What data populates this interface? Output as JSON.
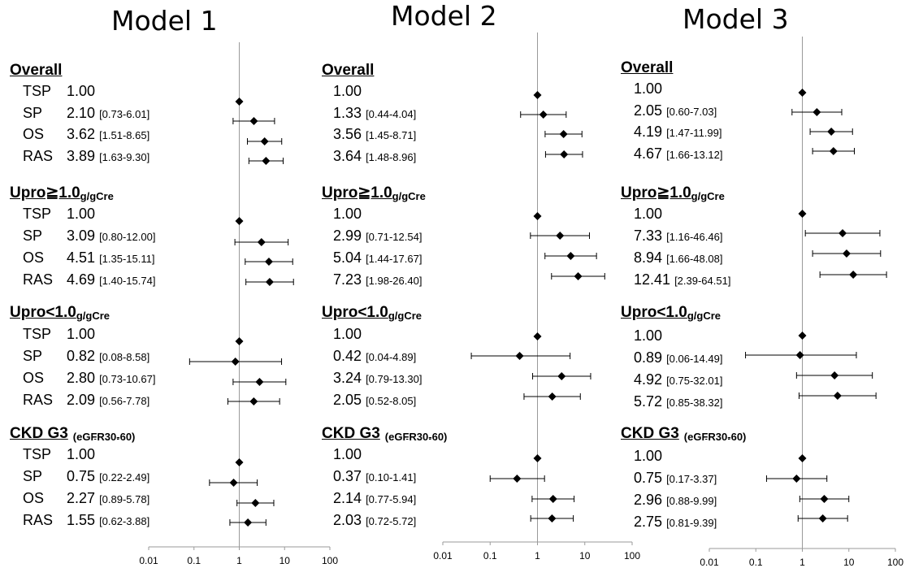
{
  "chart_data": [
    {
      "type": "forest",
      "title": "Model 1",
      "x_axis": {
        "scale": "log",
        "ticks": [
          "0.01",
          "0.1",
          "1",
          "10",
          "100"
        ],
        "range": [
          0.01,
          100
        ]
      },
      "groups": [
        {
          "name": "Overall",
          "suffix": "",
          "rows": [
            {
              "label": "TSP",
              "hr_text": "1.00",
              "ci_text": "",
              "hr": 1.0,
              "lo": null,
              "hi": null
            },
            {
              "label": "SP",
              "hr_text": "2.10",
              "ci_text": "[0.73-6.01]",
              "hr": 2.1,
              "lo": 0.73,
              "hi": 6.01
            },
            {
              "label": "OS",
              "hr_text": "3.62",
              "ci_text": "[1.51-8.65]",
              "hr": 3.62,
              "lo": 1.51,
              "hi": 8.65
            },
            {
              "label": "RAS",
              "hr_text": "3.89",
              "ci_text": "[1.63-9.30]",
              "hr": 3.89,
              "lo": 1.63,
              "hi": 9.3
            }
          ]
        },
        {
          "name": "Upro≧1.0",
          "suffix": "g/gCre",
          "rows": [
            {
              "label": "TSP",
              "hr_text": "1.00",
              "ci_text": "",
              "hr": 1.0,
              "lo": null,
              "hi": null
            },
            {
              "label": "SP",
              "hr_text": "3.09",
              "ci_text": "[0.80-12.00]",
              "hr": 3.09,
              "lo": 0.8,
              "hi": 12.0
            },
            {
              "label": "OS",
              "hr_text": "4.51",
              "ci_text": "[1.35-15.11]",
              "hr": 4.51,
              "lo": 1.35,
              "hi": 15.11
            },
            {
              "label": "RAS",
              "hr_text": "4.69",
              "ci_text": "[1.40-15.74]",
              "hr": 4.69,
              "lo": 1.4,
              "hi": 15.74
            }
          ]
        },
        {
          "name": "Upro<1.0",
          "suffix": "g/gCre",
          "rows": [
            {
              "label": "TSP",
              "hr_text": "1.00",
              "ci_text": "",
              "hr": 1.0,
              "lo": null,
              "hi": null
            },
            {
              "label": "SP",
              "hr_text": "0.82",
              "ci_text": "[0.08-8.58]",
              "hr": 0.82,
              "lo": 0.08,
              "hi": 8.58
            },
            {
              "label": "OS",
              "hr_text": "2.80",
              "ci_text": "[0.73-10.67]",
              "hr": 2.8,
              "lo": 0.73,
              "hi": 10.67
            },
            {
              "label": "RAS",
              "hr_text": "2.09",
              "ci_text": "[0.56-7.78]",
              "hr": 2.09,
              "lo": 0.56,
              "hi": 7.78
            }
          ]
        },
        {
          "name": "CKD G3",
          "suffix": "(eGFR30-60)",
          "rows": [
            {
              "label": "TSP",
              "hr_text": "1.00",
              "ci_text": "",
              "hr": 1.0,
              "lo": null,
              "hi": null
            },
            {
              "label": "SP",
              "hr_text": "0.75",
              "ci_text": "[0.22-2.49]",
              "hr": 0.75,
              "lo": 0.22,
              "hi": 2.49
            },
            {
              "label": "OS",
              "hr_text": "2.27",
              "ci_text": "[0.89-5.78]",
              "hr": 2.27,
              "lo": 0.89,
              "hi": 5.78
            },
            {
              "label": "RAS",
              "hr_text": "1.55",
              "ci_text": "[0.62-3.88]",
              "hr": 1.55,
              "lo": 0.62,
              "hi": 3.88
            }
          ]
        }
      ]
    },
    {
      "type": "forest",
      "title": "Model 2",
      "x_axis": {
        "scale": "log",
        "ticks": [
          "0.01",
          "0.1",
          "1",
          "10",
          "100"
        ],
        "range": [
          0.01,
          100
        ]
      },
      "groups": [
        {
          "name": "Overall",
          "suffix": "",
          "rows": [
            {
              "label": "",
              "hr_text": "1.00",
              "ci_text": "",
              "hr": 1.0,
              "lo": null,
              "hi": null
            },
            {
              "label": "",
              "hr_text": "1.33",
              "ci_text": "[0.44-4.04]",
              "hr": 1.33,
              "lo": 0.44,
              "hi": 4.04
            },
            {
              "label": "",
              "hr_text": "3.56",
              "ci_text": "[1.45-8.71]",
              "hr": 3.56,
              "lo": 1.45,
              "hi": 8.71
            },
            {
              "label": "",
              "hr_text": "3.64",
              "ci_text": "[1.48-8.96]",
              "hr": 3.64,
              "lo": 1.48,
              "hi": 8.96
            }
          ]
        },
        {
          "name": "Upro≧1.0",
          "suffix": "g/gCre",
          "rows": [
            {
              "label": "",
              "hr_text": "1.00",
              "ci_text": "",
              "hr": 1.0,
              "lo": null,
              "hi": null
            },
            {
              "label": "",
              "hr_text": "2.99",
              "ci_text": "[0.71-12.54]",
              "hr": 2.99,
              "lo": 0.71,
              "hi": 12.54
            },
            {
              "label": "",
              "hr_text": "5.04",
              "ci_text": "[1.44-17.67]",
              "hr": 5.04,
              "lo": 1.44,
              "hi": 17.67
            },
            {
              "label": "",
              "hr_text": "7.23",
              "ci_text": "[1.98-26.40]",
              "hr": 7.23,
              "lo": 1.98,
              "hi": 26.4
            }
          ]
        },
        {
          "name": "Upro<1.0",
          "suffix": "g/gCre",
          "rows": [
            {
              "label": "",
              "hr_text": "1.00",
              "ci_text": "",
              "hr": 1.0,
              "lo": null,
              "hi": null
            },
            {
              "label": "",
              "hr_text": "0.42",
              "ci_text": "[0.04-4.89]",
              "hr": 0.42,
              "lo": 0.04,
              "hi": 4.89
            },
            {
              "label": "",
              "hr_text": "3.24",
              "ci_text": "[0.79-13.30]",
              "hr": 3.24,
              "lo": 0.79,
              "hi": 13.3
            },
            {
              "label": "",
              "hr_text": "2.05",
              "ci_text": "[0.52-8.05]",
              "hr": 2.05,
              "lo": 0.52,
              "hi": 8.05
            }
          ]
        },
        {
          "name": "CKD G3",
          "suffix": "(eGFR30-60)",
          "rows": [
            {
              "label": "",
              "hr_text": "1.00",
              "ci_text": "",
              "hr": 1.0,
              "lo": null,
              "hi": null
            },
            {
              "label": "",
              "hr_text": "0.37",
              "ci_text": "[0.10-1.41]",
              "hr": 0.37,
              "lo": 0.1,
              "hi": 1.41
            },
            {
              "label": "",
              "hr_text": "2.14",
              "ci_text": "[0.77-5.94]",
              "hr": 2.14,
              "lo": 0.77,
              "hi": 5.94
            },
            {
              "label": "",
              "hr_text": "2.03",
              "ci_text": "[0.72-5.72]",
              "hr": 2.03,
              "lo": 0.72,
              "hi": 5.72
            }
          ]
        }
      ]
    },
    {
      "type": "forest",
      "title": "Model 3",
      "x_axis": {
        "scale": "log",
        "ticks": [
          "0.01",
          "0.1",
          "1",
          "10",
          "100"
        ],
        "range": [
          0.01,
          100
        ]
      },
      "groups": [
        {
          "name": "Overall",
          "suffix": "",
          "rows": [
            {
              "label": "",
              "hr_text": "1.00",
              "ci_text": "",
              "hr": 1.0,
              "lo": null,
              "hi": null
            },
            {
              "label": "",
              "hr_text": "2.05",
              "ci_text": "[0.60-7.03]",
              "hr": 2.05,
              "lo": 0.6,
              "hi": 7.03
            },
            {
              "label": "",
              "hr_text": "4.19",
              "ci_text": "[1.47-11.99]",
              "hr": 4.19,
              "lo": 1.47,
              "hi": 11.99
            },
            {
              "label": "",
              "hr_text": "4.67",
              "ci_text": "[1.66-13.12]",
              "hr": 4.67,
              "lo": 1.66,
              "hi": 13.12
            }
          ]
        },
        {
          "name": "Upro≧1.0",
          "suffix": "g/gCre",
          "rows": [
            {
              "label": "",
              "hr_text": "1.00",
              "ci_text": "",
              "hr": 1.0,
              "lo": null,
              "hi": null
            },
            {
              "label": "",
              "hr_text": "7.33",
              "ci_text": "[1.16-46.46]",
              "hr": 7.33,
              "lo": 1.16,
              "hi": 46.46
            },
            {
              "label": "",
              "hr_text": "8.94",
              "ci_text": "[1.66-48.08]",
              "hr": 8.94,
              "lo": 1.66,
              "hi": 48.08
            },
            {
              "label": "",
              "hr_text": "12.41",
              "ci_text": "[2.39-64.51]",
              "hr": 12.41,
              "lo": 2.39,
              "hi": 64.51
            }
          ]
        },
        {
          "name": "Upro<1.0",
          "suffix": "g/gCre",
          "rows": [
            {
              "label": "",
              "hr_text": "1.00",
              "ci_text": "",
              "hr": 1.0,
              "lo": null,
              "hi": null
            },
            {
              "label": "",
              "hr_text": "0.89",
              "ci_text": "[0.06-14.49]",
              "hr": 0.89,
              "lo": 0.06,
              "hi": 14.49
            },
            {
              "label": "",
              "hr_text": "4.92",
              "ci_text": "[0.75-32.01]",
              "hr": 4.92,
              "lo": 0.75,
              "hi": 32.01
            },
            {
              "label": "",
              "hr_text": "5.72",
              "ci_text": "[0.85-38.32]",
              "hr": 5.72,
              "lo": 0.85,
              "hi": 38.32
            }
          ]
        },
        {
          "name": "CKD G3",
          "suffix": "(eGFR30-60)",
          "rows": [
            {
              "label": "",
              "hr_text": "1.00",
              "ci_text": "",
              "hr": 1.0,
              "lo": null,
              "hi": null
            },
            {
              "label": "",
              "hr_text": "0.75",
              "ci_text": "[0.17-3.37]",
              "hr": 0.75,
              "lo": 0.17,
              "hi": 3.37
            },
            {
              "label": "",
              "hr_text": "2.96",
              "ci_text": "[0.88-9.99]",
              "hr": 2.96,
              "lo": 0.88,
              "hi": 9.99
            },
            {
              "label": "",
              "hr_text": "2.75",
              "ci_text": "[0.81-9.39]",
              "hr": 2.75,
              "lo": 0.81,
              "hi": 9.39
            }
          ]
        }
      ]
    }
  ]
}
